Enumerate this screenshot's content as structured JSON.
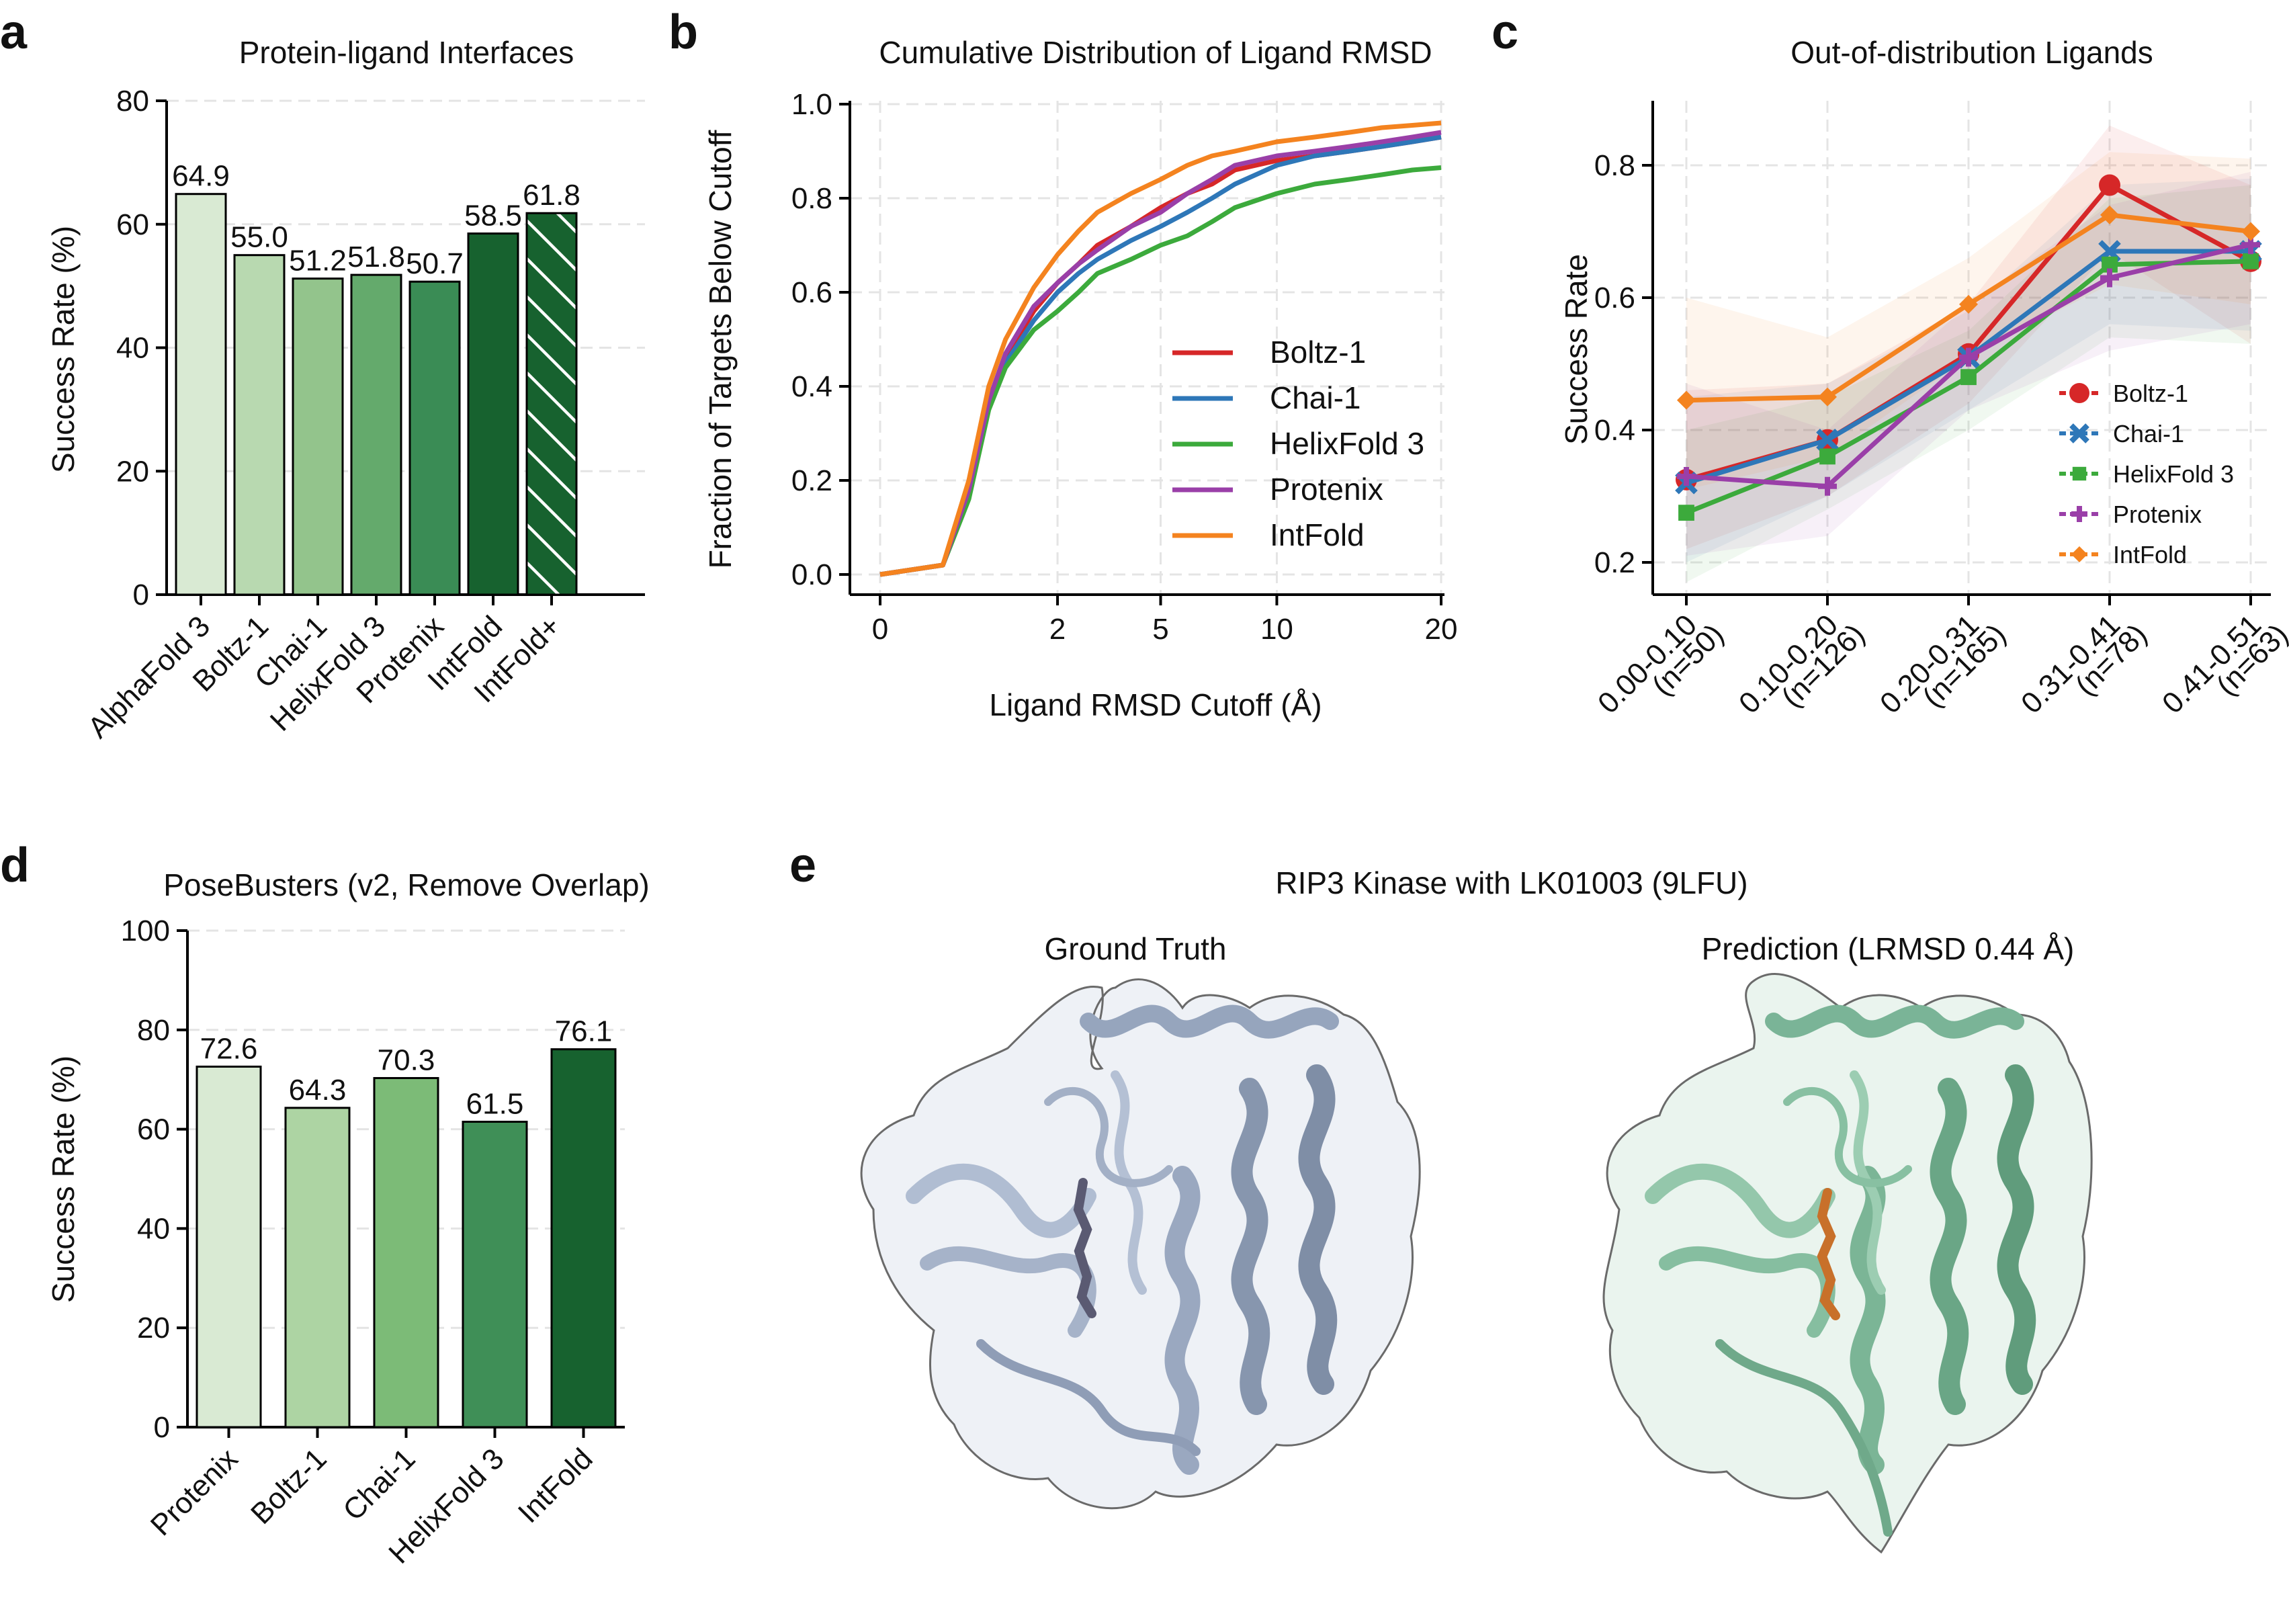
{
  "panels": {
    "a": {
      "letter": "a",
      "chart_data": {
        "type": "bar",
        "title": "Protein-ligand Interfaces",
        "ylabel": "Success Rate (%)",
        "xlabel": "",
        "ylim": [
          0,
          80
        ],
        "yticks": [
          0,
          20,
          40,
          60,
          80
        ],
        "categories": [
          "AlphaFold 3",
          "Boltz-1",
          "Chai-1",
          "HelixFold 3",
          "Protenix",
          "IntFold",
          "IntFold+"
        ],
        "values": [
          64.9,
          55.0,
          51.2,
          51.8,
          50.7,
          58.5,
          61.8
        ],
        "value_labels": [
          "64.9",
          "55.0",
          "51.2",
          "51.8",
          "50.7",
          "58.5",
          "61.8"
        ],
        "colors": [
          "#d9ead3",
          "#b8d9b0",
          "#93c48c",
          "#64aa6c",
          "#3a8c55",
          "#17622f",
          "#17622f"
        ],
        "hatched": [
          false,
          false,
          false,
          false,
          false,
          false,
          true
        ]
      }
    },
    "b": {
      "letter": "b",
      "chart_data": {
        "type": "line",
        "title": "Cumulative Distribution of Ligand RMSD",
        "xlabel": "Ligand RMSD Cutoff (Å)",
        "ylabel": "Fraction of Targets Below Cutoff",
        "xscale": "sqrt",
        "xlim": [
          0,
          20
        ],
        "ylim": [
          0,
          1
        ],
        "xticks": [
          0,
          2,
          5,
          10,
          20
        ],
        "yticks": [
          0.0,
          0.2,
          0.4,
          0.6,
          0.8,
          1.0
        ],
        "ytick_labels": [
          "0.0",
          "0.2",
          "0.4",
          "0.6",
          "0.8",
          "1.0"
        ],
        "legend_position": "center-right",
        "x": [
          0,
          0.25,
          0.5,
          0.75,
          1.0,
          1.5,
          2,
          2.5,
          3,
          4,
          5,
          6,
          7,
          8,
          10,
          12,
          14,
          16,
          18,
          20
        ],
        "series": [
          {
            "name": "Boltz-1",
            "color": "#d62728",
            "values": [
              0.0,
              0.02,
              0.18,
              0.37,
              0.46,
              0.56,
              0.62,
              0.66,
              0.7,
              0.74,
              0.78,
              0.81,
              0.83,
              0.86,
              0.88,
              0.89,
              0.9,
              0.91,
              0.92,
              0.93
            ]
          },
          {
            "name": "Chai-1",
            "color": "#2e77b8",
            "values": [
              0.0,
              0.02,
              0.17,
              0.36,
              0.45,
              0.54,
              0.6,
              0.64,
              0.67,
              0.71,
              0.74,
              0.77,
              0.8,
              0.83,
              0.87,
              0.89,
              0.9,
              0.91,
              0.92,
              0.93
            ]
          },
          {
            "name": "HelixFold 3",
            "color": "#3caa3c",
            "values": [
              0.0,
              0.02,
              0.16,
              0.35,
              0.44,
              0.52,
              0.56,
              0.6,
              0.64,
              0.67,
              0.7,
              0.72,
              0.75,
              0.78,
              0.81,
              0.83,
              0.84,
              0.85,
              0.86,
              0.865
            ]
          },
          {
            "name": "Protenix",
            "color": "#9a3fa8",
            "values": [
              0.0,
              0.02,
              0.18,
              0.37,
              0.47,
              0.57,
              0.62,
              0.66,
              0.69,
              0.74,
              0.77,
              0.81,
              0.84,
              0.87,
              0.89,
              0.9,
              0.91,
              0.92,
              0.93,
              0.94
            ]
          },
          {
            "name": "IntFold",
            "color": "#f4831f",
            "values": [
              0.0,
              0.02,
              0.2,
              0.4,
              0.5,
              0.61,
              0.68,
              0.73,
              0.77,
              0.81,
              0.84,
              0.87,
              0.89,
              0.9,
              0.92,
              0.93,
              0.94,
              0.95,
              0.955,
              0.96
            ]
          }
        ]
      }
    },
    "c": {
      "letter": "c",
      "chart_data": {
        "type": "line",
        "title": "Out-of-distribution Ligands",
        "xlabel": "",
        "ylabel": "Success Rate",
        "ylim": [
          0.15,
          0.9
        ],
        "yticks": [
          0.2,
          0.4,
          0.6,
          0.8
        ],
        "ytick_labels": [
          "0.2",
          "0.4",
          "0.6",
          "0.8"
        ],
        "categories": [
          "0.00-0.10",
          "0.10-0.20",
          "0.20-0.31",
          "0.31-0.41",
          "0.41-0.51"
        ],
        "category_counts": [
          "(n=50)",
          "(n=126)",
          "(n=165)",
          "(n=78)",
          "(n=63)"
        ],
        "legend_position": "right",
        "series": [
          {
            "name": "Boltz-1",
            "color": "#d62728",
            "marker": "circle",
            "values": [
              0.325,
              0.385,
              0.515,
              0.77,
              0.655
            ],
            "ci_low": [
              0.22,
              0.3,
              0.44,
              0.67,
              0.53
            ],
            "ci_high": [
              0.46,
              0.47,
              0.59,
              0.86,
              0.77
            ]
          },
          {
            "name": "Chai-1",
            "color": "#2e77b8",
            "marker": "x",
            "values": [
              0.32,
              0.385,
              0.51,
              0.67,
              0.67
            ],
            "ci_low": [
              0.2,
              0.3,
              0.43,
              0.56,
              0.55
            ],
            "ci_high": [
              0.45,
              0.47,
              0.58,
              0.77,
              0.78
            ]
          },
          {
            "name": "HelixFold 3",
            "color": "#3caa3c",
            "marker": "square",
            "values": [
              0.275,
              0.36,
              0.48,
              0.65,
              0.655
            ],
            "ci_low": [
              0.17,
              0.28,
              0.4,
              0.54,
              0.53
            ],
            "ci_high": [
              0.4,
              0.45,
              0.55,
              0.75,
              0.77
            ]
          },
          {
            "name": "Protenix",
            "color": "#9a3fa8",
            "marker": "plus",
            "values": [
              0.33,
              0.315,
              0.51,
              0.63,
              0.68
            ],
            "ci_low": [
              0.21,
              0.24,
              0.43,
              0.52,
              0.56
            ],
            "ci_high": [
              0.47,
              0.4,
              0.59,
              0.74,
              0.79
            ]
          },
          {
            "name": "IntFold",
            "color": "#f4831f",
            "marker": "diamond",
            "values": [
              0.445,
              0.45,
              0.59,
              0.725,
              0.7
            ],
            "ci_low": [
              0.31,
              0.36,
              0.51,
              0.62,
              0.59
            ],
            "ci_high": [
              0.6,
              0.54,
              0.66,
              0.82,
              0.81
            ]
          }
        ]
      }
    },
    "d": {
      "letter": "d",
      "chart_data": {
        "type": "bar",
        "title": "PoseBusters (v2, Remove Overlap)",
        "ylabel": "Success Rate (%)",
        "xlabel": "",
        "ylim": [
          0,
          100
        ],
        "yticks": [
          0,
          20,
          40,
          60,
          80,
          100
        ],
        "categories": [
          "Protenix",
          "Boltz-1",
          "Chai-1",
          "HelixFold 3",
          "IntFold"
        ],
        "values": [
          72.6,
          64.3,
          70.3,
          61.5,
          76.1
        ],
        "value_labels": [
          "72.6",
          "64.3",
          "70.3",
          "61.5",
          "76.1"
        ],
        "colors": [
          "#d9ead3",
          "#add4a3",
          "#7cbb77",
          "#3f8f57",
          "#17622f"
        ],
        "hatched": [
          false,
          false,
          false,
          false,
          false
        ]
      }
    },
    "e": {
      "letter": "e",
      "title": "RIP3 Kinase with LK01003 (9LFU)",
      "left_title": "Ground Truth",
      "right_title": "Prediction (LRMSD 0.44 Å)",
      "left_color": "#a9b6cc",
      "right_color": "#8fc4a8",
      "left_ligand_color": "#5a5a72",
      "right_ligand_color": "#c8702a"
    }
  }
}
